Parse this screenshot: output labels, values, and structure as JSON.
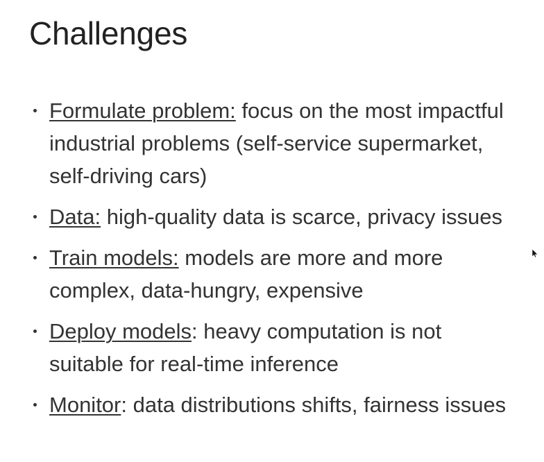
{
  "slide": {
    "title": "Challenges",
    "items": [
      {
        "term": "Formulate problem:",
        "lines": [
          " focus on the most impactful",
          "industrial problems (self-service supermarket,",
          "self-driving cars)"
        ]
      },
      {
        "term": "Data:",
        "lines": [
          " high-quality data is scarce, privacy issues"
        ]
      },
      {
        "term": "Train models:",
        "lines": [
          " models are more and more",
          "complex, data-hungry, expensive"
        ]
      },
      {
        "term": "Deploy models",
        "lines": [
          ": heavy computation is not",
          "suitable for real-time inference"
        ]
      },
      {
        "term": "Monitor",
        "lines": [
          ": data distributions shifts, fairness issues"
        ]
      }
    ]
  }
}
